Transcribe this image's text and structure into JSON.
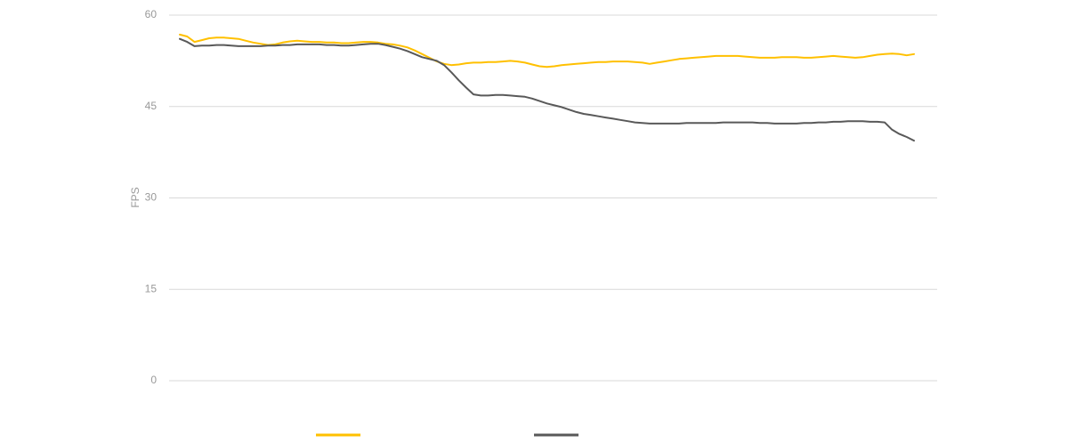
{
  "chart_data": {
    "type": "line",
    "title": "",
    "xlabel": "",
    "ylabel": "FPS",
    "ylim": [
      0,
      60
    ],
    "yticks": [
      {
        "value": 0,
        "label": "0"
      },
      {
        "value": 15,
        "label": "15"
      },
      {
        "value": 30,
        "label": "30"
      },
      {
        "value": 45,
        "label": "45"
      },
      {
        "value": 60,
        "label": "60"
      }
    ],
    "grid": true,
    "legend": "bottom",
    "x": [
      0,
      1,
      2,
      3,
      4,
      5,
      6,
      7,
      8,
      9,
      10,
      11,
      12,
      13,
      14,
      15,
      16,
      17,
      18,
      19,
      20,
      21,
      22,
      23,
      24,
      25,
      26,
      27,
      28,
      29,
      30,
      31,
      32,
      33,
      34,
      35,
      36,
      37,
      38,
      39,
      40,
      41,
      42,
      43,
      44,
      45,
      46,
      47,
      48,
      49,
      50,
      51,
      52,
      53,
      54,
      55,
      56,
      57,
      58,
      59,
      60,
      61,
      62,
      63,
      64,
      65,
      66,
      67,
      68,
      69,
      70,
      71,
      72,
      73,
      74,
      75,
      76,
      77,
      78,
      79,
      80,
      81,
      82,
      83,
      84,
      85,
      86,
      87,
      88,
      89,
      90,
      91,
      92,
      93,
      94,
      95,
      96,
      97,
      98,
      99,
      100
    ],
    "series": [
      {
        "name": "",
        "color": "#ffc000",
        "values": [
          56.8,
          56.5,
          55.6,
          55.9,
          56.2,
          56.3,
          56.3,
          56.2,
          56.1,
          55.8,
          55.5,
          55.3,
          55.1,
          55.2,
          55.5,
          55.7,
          55.8,
          55.7,
          55.6,
          55.6,
          55.5,
          55.5,
          55.4,
          55.4,
          55.5,
          55.6,
          55.6,
          55.5,
          55.3,
          55.2,
          55.0,
          54.7,
          54.2,
          53.6,
          53.0,
          52.4,
          52.0,
          51.8,
          51.9,
          52.1,
          52.2,
          52.2,
          52.3,
          52.3,
          52.4,
          52.5,
          52.4,
          52.2,
          51.9,
          51.6,
          51.5,
          51.6,
          51.8,
          51.9,
          52.0,
          52.1,
          52.2,
          52.3,
          52.3,
          52.4,
          52.4,
          52.4,
          52.3,
          52.2,
          52.0,
          52.2,
          52.4,
          52.6,
          52.8,
          52.9,
          53.0,
          53.1,
          53.2,
          53.3,
          53.3,
          53.3,
          53.3,
          53.2,
          53.1,
          53.0,
          53.0,
          53.0,
          53.1,
          53.1,
          53.1,
          53.0,
          53.0,
          53.1,
          53.2,
          53.3,
          53.2,
          53.1,
          53.0,
          53.1,
          53.3,
          53.5,
          53.6,
          53.7,
          53.6,
          53.4,
          53.6
        ]
      },
      {
        "name": "",
        "color": "#595959",
        "values": [
          56.1,
          55.6,
          54.9,
          55.0,
          55.0,
          55.1,
          55.1,
          55.0,
          54.9,
          54.9,
          54.9,
          54.9,
          55.0,
          55.0,
          55.1,
          55.1,
          55.2,
          55.2,
          55.2,
          55.2,
          55.1,
          55.1,
          55.0,
          55.0,
          55.1,
          55.2,
          55.3,
          55.3,
          55.1,
          54.8,
          54.5,
          54.1,
          53.6,
          53.1,
          52.8,
          52.5,
          51.8,
          50.6,
          49.3,
          48.1,
          47.0,
          46.8,
          46.8,
          46.9,
          46.9,
          46.8,
          46.7,
          46.6,
          46.3,
          45.9,
          45.5,
          45.2,
          44.9,
          44.5,
          44.1,
          43.8,
          43.6,
          43.4,
          43.2,
          43.0,
          42.8,
          42.6,
          42.4,
          42.3,
          42.2,
          42.2,
          42.2,
          42.2,
          42.2,
          42.3,
          42.3,
          42.3,
          42.3,
          42.3,
          42.4,
          42.4,
          42.4,
          42.4,
          42.4,
          42.3,
          42.3,
          42.2,
          42.2,
          42.2,
          42.2,
          42.3,
          42.3,
          42.4,
          42.4,
          42.5,
          42.5,
          42.6,
          42.6,
          42.6,
          42.5,
          42.5,
          42.4,
          41.2,
          40.5,
          40.0,
          39.4
        ]
      }
    ]
  }
}
